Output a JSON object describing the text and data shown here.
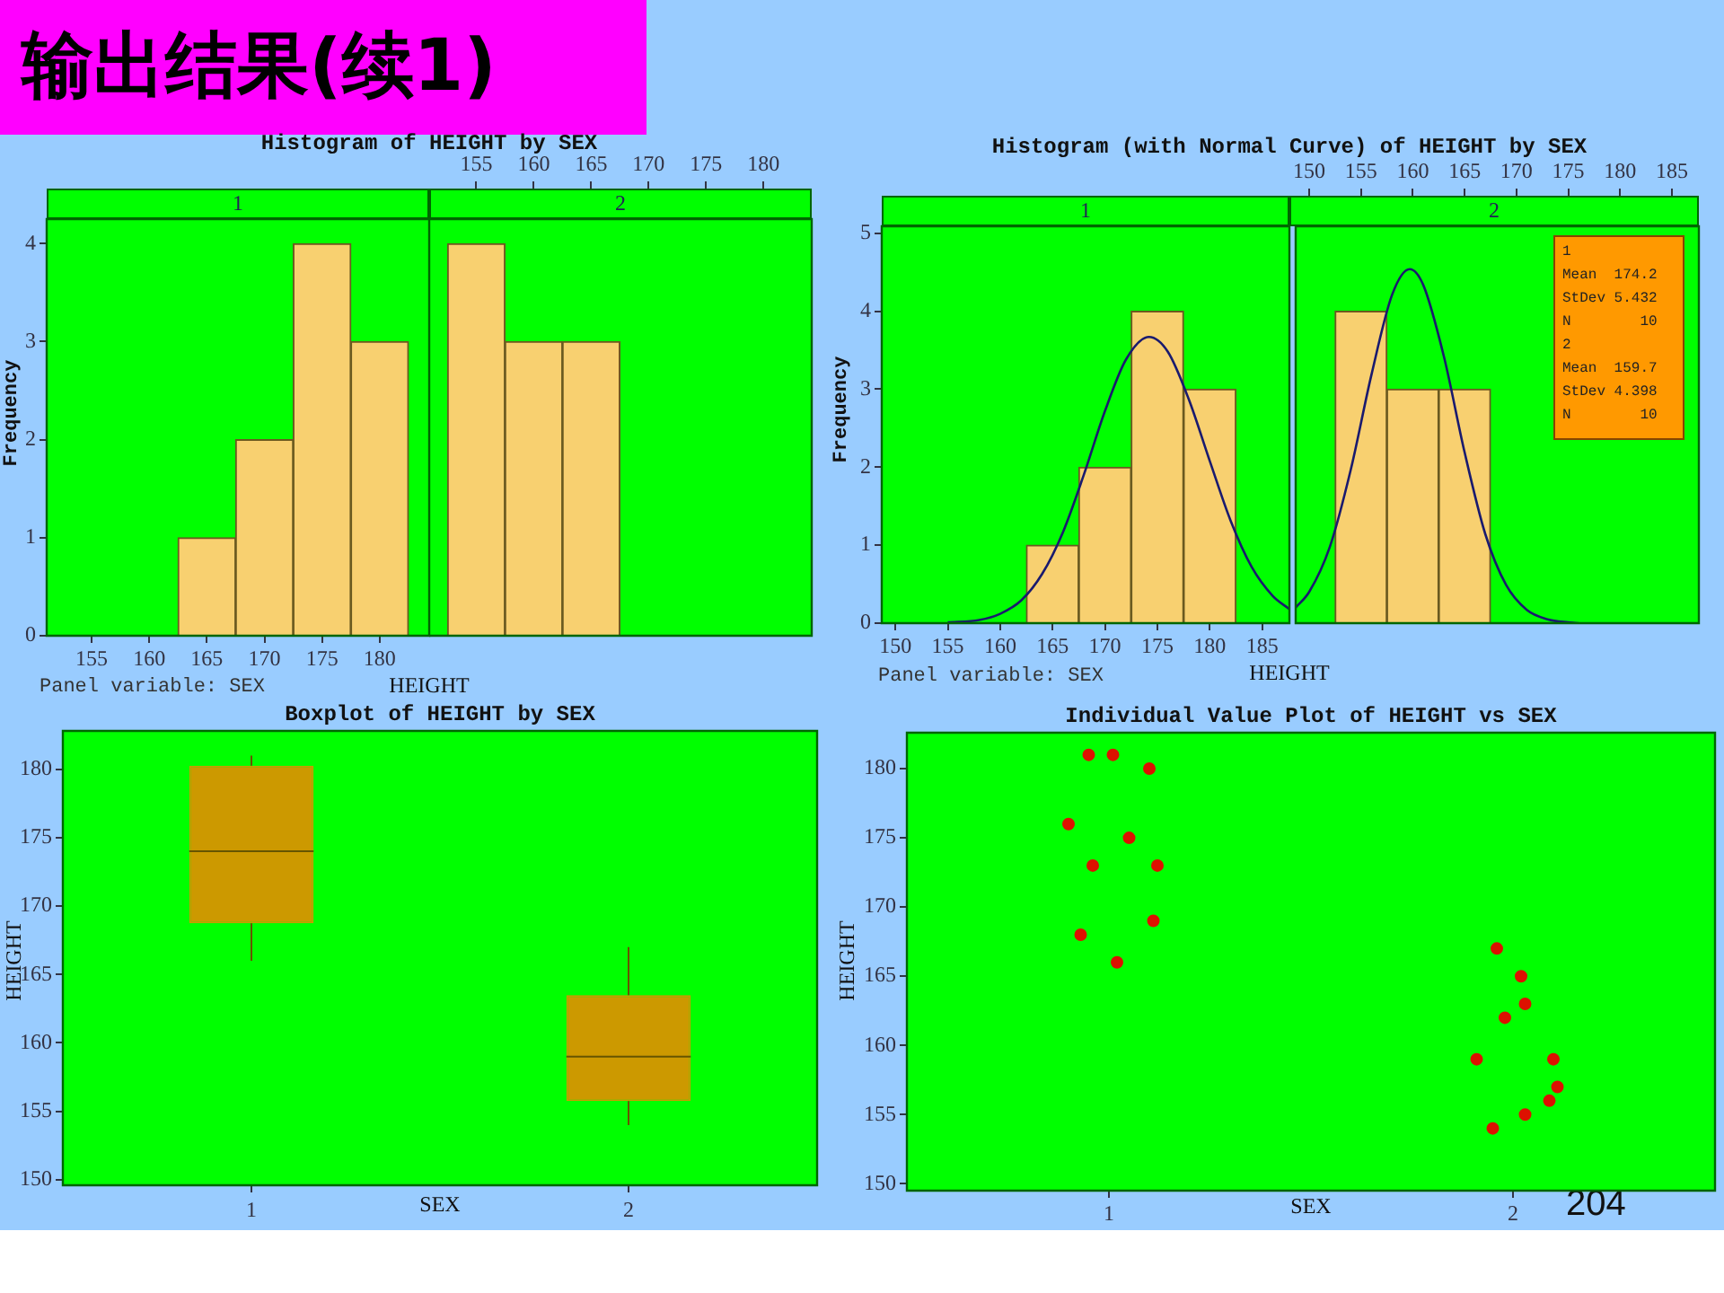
{
  "chart_data": [
    {
      "type": "other",
      "title": "输出结果(续1)",
      "annotations": [
        "204"
      ]
    },
    {
      "type": "histogram",
      "title": "Histogram of HEIGHT by SEX",
      "subtitle": "1",
      "xlabel": "HEIGHT",
      "ylabel": "Frequency",
      "annotations": [
        "Panel variable: SEX"
      ],
      "bins": [
        162.5,
        167.5,
        172.5,
        177.5,
        182.5
      ],
      "values": [
        1,
        2,
        4,
        3
      ],
      "color": "#f8d070",
      "xlim": [
        151.1,
        184.3
      ],
      "xticks": [
        155,
        160,
        165,
        170,
        175,
        180
      ],
      "ylim": [
        0,
        4.25
      ],
      "yticks": [
        0,
        1,
        2,
        3,
        4
      ]
    },
    {
      "type": "histogram",
      "subtitle": "2",
      "bins": [
        152.5,
        157.5,
        162.5,
        167.5
      ],
      "values": [
        4,
        3,
        3
      ],
      "color": "#f8d070",
      "xlim": [
        150.9,
        184.2
      ],
      "xticks": [
        155,
        160,
        165,
        170,
        175,
        180
      ],
      "ylim": [
        0,
        4.25
      ],
      "tick_labels": "x"
    },
    {
      "type": "histogram",
      "title": "Histogram (with Normal Curve) of HEIGHT by SEX",
      "subtitle": "1",
      "xlabel": "HEIGHT",
      "ylabel": "Frequency",
      "annotations": [
        "Panel variable: SEX"
      ],
      "bins": [
        162.5,
        167.5,
        172.5,
        177.5,
        182.5
      ],
      "values": [
        1,
        2,
        4,
        3
      ],
      "color": "#f8d070",
      "xlim": [
        148.7,
        187.6
      ],
      "xticks": [
        150,
        155,
        160,
        165,
        170,
        175,
        180,
        185
      ],
      "ylim": [
        0,
        5.09
      ],
      "yticks": [
        0,
        1,
        2,
        3,
        4,
        5
      ],
      "series": [
        {
          "type": "line",
          "color": "#1a1a6e",
          "x": [
            155,
            158,
            160,
            162,
            164,
            166,
            168,
            170,
            172,
            174.2,
            176,
            178,
            180,
            182,
            184,
            186,
            187.6
          ],
          "values": [
            0.01,
            0.04,
            0.12,
            0.29,
            0.63,
            1.17,
            1.91,
            2.72,
            3.38,
            3.67,
            3.48,
            2.87,
            2.08,
            1.31,
            0.72,
            0.35,
            0.18
          ]
        }
      ]
    },
    {
      "type": "histogram",
      "subtitle": "2",
      "annotations": [
        "1",
        "Mean  174.2",
        "StDev 5.432",
        "N        10",
        "2",
        "Mean  159.7",
        "StDev 4.398",
        "N        10"
      ],
      "bins": [
        152.5,
        157.5,
        162.5,
        167.5
      ],
      "values": [
        4,
        3,
        3
      ],
      "color": "#f8d070",
      "xlim": [
        148.7,
        187.6
      ],
      "xticks": [
        150,
        155,
        160,
        165,
        170,
        175,
        180,
        185
      ],
      "ylim": [
        0,
        5.09
      ],
      "tick_labels": "x",
      "series": [
        {
          "type": "line",
          "color": "#1a1a6e",
          "x": [
            148.7,
            150,
            152,
            154,
            156,
            158,
            159.7,
            161,
            163,
            165,
            167,
            169,
            171,
            173,
            175,
            176
          ],
          "values": [
            0.2,
            0.4,
            0.98,
            1.96,
            3.18,
            4.21,
            4.54,
            4.34,
            3.42,
            2.19,
            1.14,
            0.49,
            0.17,
            0.05,
            0.01,
            0
          ]
        }
      ]
    },
    {
      "type": "box",
      "title": "Boxplot of HEIGHT by SEX",
      "xlabel": "SEX",
      "ylabel": "HEIGHT",
      "categories": [
        "1",
        "2"
      ],
      "color": "#cc9900",
      "boxes": [
        {
          "low": 166,
          "q1": 168.75,
          "median": 174,
          "q3": 180.25,
          "high": 181
        },
        {
          "low": 154,
          "q1": 155.75,
          "median": 159,
          "q3": 163.5,
          "high": 167
        }
      ],
      "ylim": [
        149.6,
        182.8
      ],
      "yticks": [
        150,
        155,
        160,
        165,
        170,
        175,
        180
      ]
    },
    {
      "type": "scatter",
      "title": "Individual Value Plot of HEIGHT vs SEX",
      "xlabel": "SEX",
      "ylabel": "HEIGHT",
      "color": "#dd1100",
      "marker": "circle",
      "x": [
        0.95,
        1.01,
        1.1,
        0.9,
        1.05,
        0.96,
        1.12,
        1.11,
        0.93,
        1.02,
        1.96,
        2.02,
        2.03,
        1.98,
        1.91,
        2.1,
        2.11,
        2.09,
        2.03,
        1.95
      ],
      "values": [
        181,
        181,
        180,
        176,
        175,
        173,
        173,
        169,
        168,
        166,
        167,
        165,
        163,
        162,
        159,
        159,
        157,
        156,
        155,
        154
      ],
      "xlim": [
        0.5,
        2.5
      ],
      "xticks": [
        1,
        2
      ],
      "ylim": [
        149.5,
        182.6
      ],
      "yticks": [
        150,
        155,
        160,
        165,
        170,
        175,
        180
      ]
    }
  ]
}
